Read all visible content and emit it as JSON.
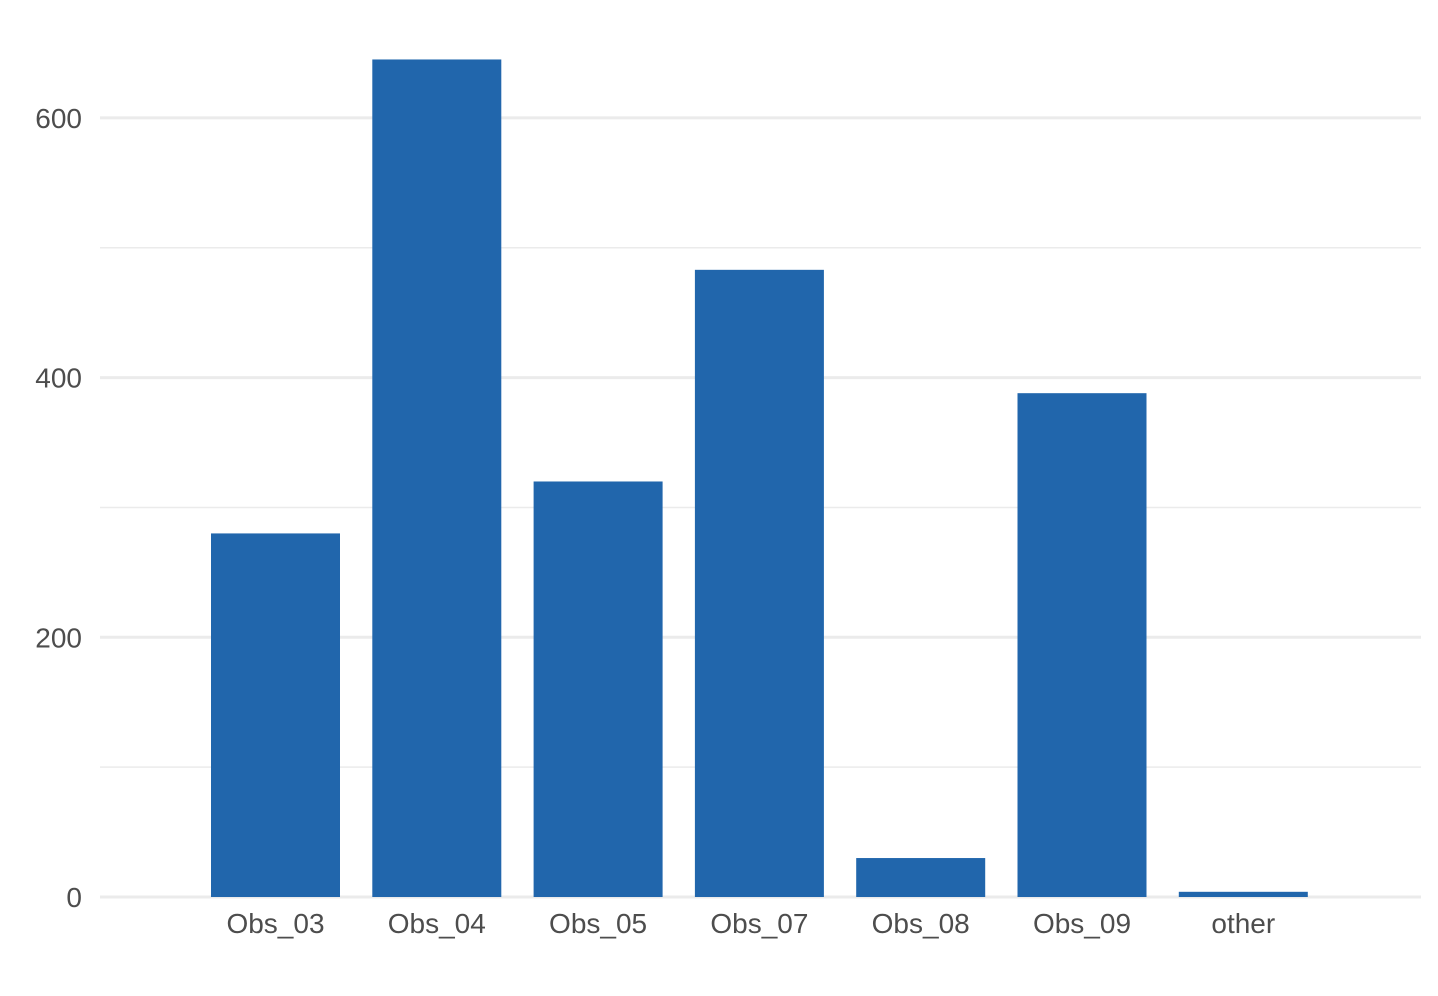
{
  "chart_data": {
    "type": "bar",
    "title": "",
    "xlabel": "",
    "ylabel": "",
    "categories": [
      "Obs_03",
      "Obs_04",
      "Obs_05",
      "Obs_07",
      "Obs_08",
      "Obs_09",
      "other"
    ],
    "values": [
      280,
      645,
      320,
      483,
      30,
      388,
      4
    ],
    "ylim": [
      0,
      650
    ],
    "yticks_major": [
      0,
      200,
      400,
      600
    ],
    "yticks_minor": [
      100,
      300,
      500
    ],
    "grid": true,
    "legend": "none",
    "bar_color": "#2166AC",
    "grid_color": "#EBEBEB"
  }
}
